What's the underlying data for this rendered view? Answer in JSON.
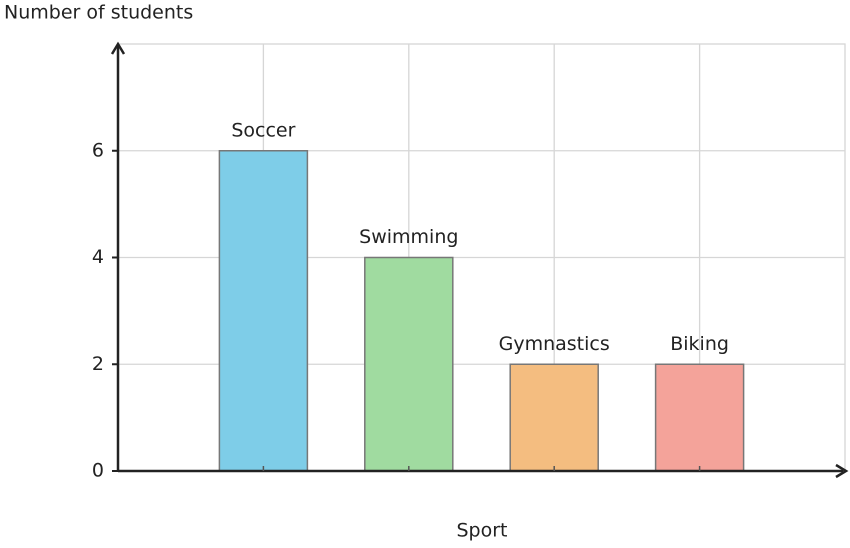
{
  "chart_data": {
    "type": "bar",
    "title": null,
    "y_label": "Number of students",
    "x_label": "Sport",
    "categories": [
      "Soccer",
      "Swimming",
      "Gymnastics",
      "Biking"
    ],
    "values": [
      6,
      4,
      2,
      2
    ],
    "colors": [
      "#7ecde8",
      "#a0dba0",
      "#f4bd80",
      "#f4a39a"
    ],
    "ylim": [
      0,
      8
    ],
    "yticks": [
      0,
      2,
      4,
      6
    ],
    "grid": true
  }
}
